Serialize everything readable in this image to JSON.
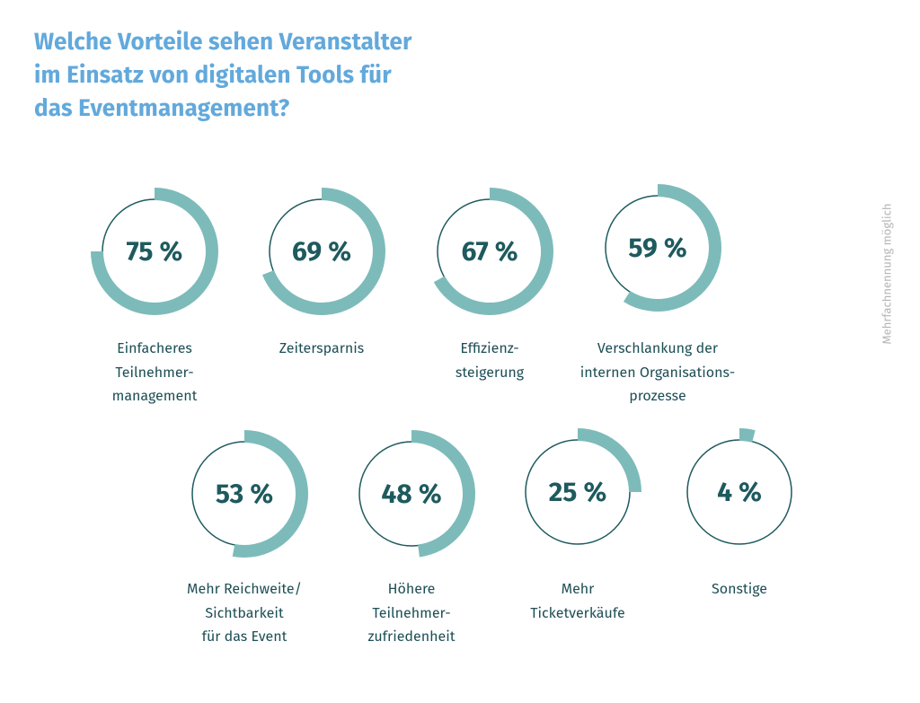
{
  "chart_data": {
    "type": "donut",
    "title": "Welche Vorteile sehen Veranstalter\nim Einsatz von digitalen Tools für\ndas Eventmanagement?",
    "note": "Mehrfachnennung möglich",
    "categories": [
      "Einfacheres\nTeilnehmer-\nmanagement",
      "Zeitersparnis",
      "Effizienz-\nsteigerung",
      "Verschlankung der\ninternen Organisations-\nprozesse",
      "Mehr Reichweite/\nSichtbarkeit\nfür das Event",
      "Höhere\nTeilnehmer-\nzufriedenheit",
      "Mehr\nTicketverkäufe",
      "Sonstige"
    ],
    "values": [
      75,
      69,
      67,
      59,
      53,
      48,
      25,
      4
    ],
    "value_labels": [
      "75 %",
      "69 %",
      "67 %",
      "59 %",
      "53 %",
      "48 %",
      "25 %",
      "4 %"
    ],
    "color": "#7dbbba",
    "ring_color": "#1e5a5e"
  }
}
